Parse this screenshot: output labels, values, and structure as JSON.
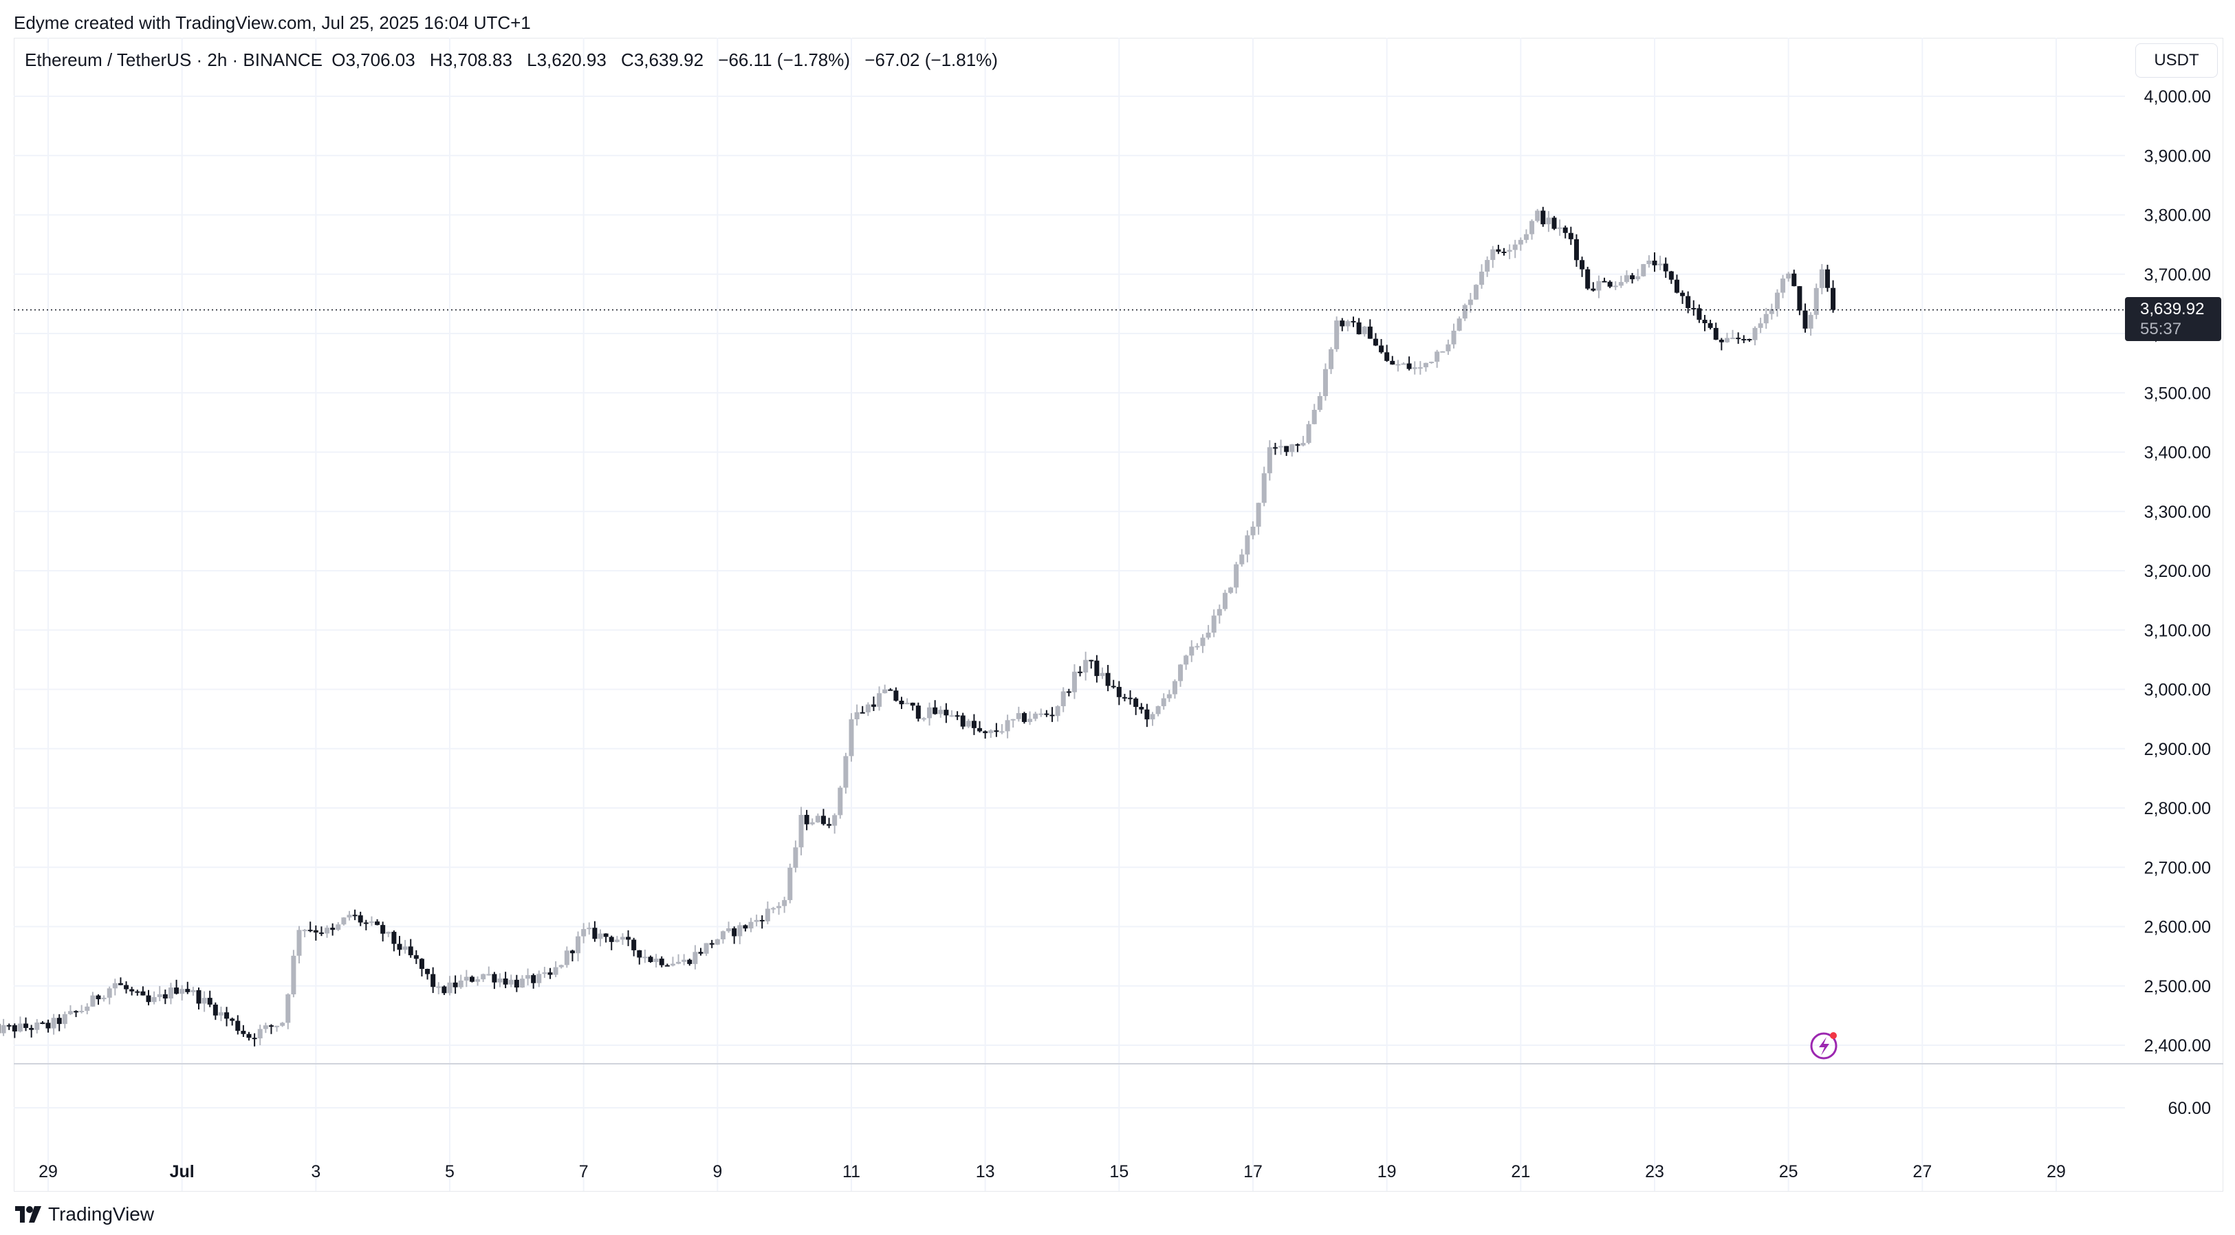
{
  "credit": "Edyme created with TradingView.com, Jul 25, 2025 16:04 UTC+1",
  "legend": {
    "symbol": "Ethereum / TetherUS · 2h · BINANCE",
    "open": "O3,706.03",
    "high": "H3,708.83",
    "low": "L3,620.93",
    "close": "C3,639.92",
    "change": "−66.11 (−1.78%)",
    "change2": "−67.02 (−1.81%)"
  },
  "currency_button": "USDT",
  "last_price": {
    "price": "3,639.92",
    "countdown": "55:37"
  },
  "watermark": "TradingView",
  "colors": {
    "up": "#b2b5be",
    "down": "#131722",
    "grid": "#f0f3fa",
    "price_line": "#131722",
    "icon": "#9c27b0",
    "icon_dot": "#f23645"
  },
  "icon": "lightning-icon",
  "chart_data": {
    "type": "candlestick",
    "symbol": "ETHUSDT",
    "interval": "2h",
    "y_ticks": [
      "4,000.00",
      "3,900.00",
      "3,800.00",
      "3,700.00",
      "3,600.00",
      "3,500.00",
      "3,400.00",
      "3,300.00",
      "3,200.00",
      "3,100.00",
      "3,000.00",
      "2,900.00",
      "2,800.00",
      "2,700.00",
      "2,600.00",
      "2,500.00",
      "2,400.00"
    ],
    "lower_pane_tick": "60.00",
    "x_ticks": [
      "29",
      "Jul",
      "3",
      "5",
      "7",
      "9",
      "11",
      "13",
      "15",
      "17",
      "19",
      "21",
      "23",
      "25",
      "27",
      "29"
    ],
    "ylim": [
      2370,
      4030
    ],
    "last_price": 3639.92,
    "path": [
      [
        "2025-06-28",
        2425
      ],
      [
        "2025-06-29",
        2432
      ],
      [
        "2025-06-29 12:00",
        2460
      ],
      [
        "2025-06-30",
        2505
      ],
      [
        "2025-06-30 12:00",
        2470
      ],
      [
        "2025-07-01",
        2500
      ],
      [
        "2025-07-01 12:00",
        2460
      ],
      [
        "2025-07-02",
        2415
      ],
      [
        "2025-07-02 12:00",
        2440
      ],
      [
        "2025-07-02 18:00",
        2600
      ],
      [
        "2025-07-03 06:00",
        2590
      ],
      [
        "2025-07-03 12:00",
        2620
      ],
      [
        "2025-07-04",
        2590
      ],
      [
        "2025-07-04 12:00",
        2540
      ],
      [
        "2025-07-04 20:00",
        2490
      ],
      [
        "2025-07-05 12:00",
        2520
      ],
      [
        "2025-07-06",
        2505
      ],
      [
        "2025-07-06 12:00",
        2515
      ],
      [
        "2025-07-07",
        2590
      ],
      [
        "2025-07-07 12:00",
        2580
      ],
      [
        "2025-07-08",
        2545
      ],
      [
        "2025-07-08 12:00",
        2540
      ],
      [
        "2025-07-09",
        2580
      ],
      [
        "2025-07-09 12:00",
        2605
      ],
      [
        "2025-07-10",
        2645
      ],
      [
        "2025-07-10 06:00",
        2780
      ],
      [
        "2025-07-10 18:00",
        2780
      ],
      [
        "2025-07-11",
        2950
      ],
      [
        "2025-07-11 12:00",
        2995
      ],
      [
        "2025-07-12",
        2960
      ],
      [
        "2025-07-12 12:00",
        2960
      ],
      [
        "2025-07-13",
        2920
      ],
      [
        "2025-07-13 12:00",
        2950
      ],
      [
        "2025-07-14",
        2960
      ],
      [
        "2025-07-14 12:00",
        3050
      ],
      [
        "2025-07-15",
        2990
      ],
      [
        "2025-07-15 12:00",
        2950
      ],
      [
        "2025-07-16",
        3050
      ],
      [
        "2025-07-16 12:00",
        3130
      ],
      [
        "2025-07-17",
        3280
      ],
      [
        "2025-07-17 06:00",
        3400
      ],
      [
        "2025-07-17 18:00",
        3420
      ],
      [
        "2025-07-18",
        3500
      ],
      [
        "2025-07-18 06:00",
        3620
      ],
      [
        "2025-07-18 18:00",
        3600
      ],
      [
        "2025-07-19",
        3550
      ],
      [
        "2025-07-19 12:00",
        3540
      ],
      [
        "2025-07-20",
        3600
      ],
      [
        "2025-07-20 12:00",
        3730
      ],
      [
        "2025-07-21",
        3760
      ],
      [
        "2025-07-21 06:00",
        3800
      ],
      [
        "2025-07-21 18:00",
        3760
      ],
      [
        "2025-07-22",
        3680
      ],
      [
        "2025-07-22 12:00",
        3690
      ],
      [
        "2025-07-23",
        3720
      ],
      [
        "2025-07-23 12:00",
        3650
      ],
      [
        "2025-07-24",
        3580
      ],
      [
        "2025-07-24 12:00",
        3600
      ],
      [
        "2025-07-24 18:00",
        3650
      ],
      [
        "2025-07-25",
        3710
      ],
      [
        "2025-07-25 06:00",
        3600
      ],
      [
        "2025-07-25 12:00",
        3710
      ],
      [
        "2025-07-25 16:00",
        3640
      ]
    ]
  }
}
